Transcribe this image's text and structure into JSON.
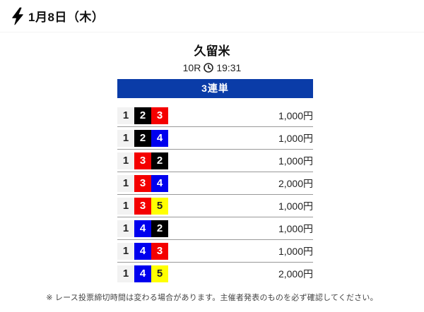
{
  "header": {
    "date_label": "1月8日（木）"
  },
  "race": {
    "venue": "久留米",
    "race_number": "10R",
    "start_time": "19:31"
  },
  "bet_type_banner": {
    "label": "3連単",
    "bg_color": "#0a3ca8"
  },
  "boat_colors": {
    "1": {
      "bg": "#f2f2f2",
      "fg": "#222222"
    },
    "2": {
      "bg": "#000000",
      "fg": "#ffffff"
    },
    "3": {
      "bg": "#f40000",
      "fg": "#ffffff"
    },
    "4": {
      "bg": "#0000ee",
      "fg": "#ffffff"
    },
    "5": {
      "bg": "#ffff00",
      "fg": "#222222"
    }
  },
  "bets": [
    {
      "combination": [
        "1",
        "2",
        "3"
      ],
      "amount": "1,000円"
    },
    {
      "combination": [
        "1",
        "2",
        "4"
      ],
      "amount": "1,000円"
    },
    {
      "combination": [
        "1",
        "3",
        "2"
      ],
      "amount": "1,000円"
    },
    {
      "combination": [
        "1",
        "3",
        "4"
      ],
      "amount": "2,000円"
    },
    {
      "combination": [
        "1",
        "3",
        "5"
      ],
      "amount": "1,000円"
    },
    {
      "combination": [
        "1",
        "4",
        "2"
      ],
      "amount": "1,000円"
    },
    {
      "combination": [
        "1",
        "4",
        "3"
      ],
      "amount": "1,000円"
    },
    {
      "combination": [
        "1",
        "4",
        "5"
      ],
      "amount": "2,000円"
    }
  ],
  "footer": {
    "note": "※ レース投票締切時間は変わる場合があります。主催者発表のものを必ず確認してください。"
  }
}
